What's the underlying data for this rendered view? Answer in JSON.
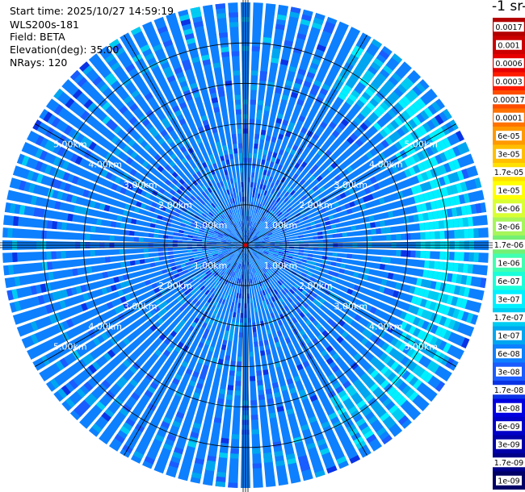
{
  "header": {
    "start_time": "Start time: 2025/10/27 14:59:19",
    "instrument": "WLS200s-181",
    "field": "Field: BETA",
    "elevation": "Elevation(deg): 35.00",
    "nrays": "NRays: 120"
  },
  "colorbar": {
    "title": "-1 sr-",
    "levels": [
      {
        "label": "0.0017",
        "color": "#b30000"
      },
      {
        "label": "0.001",
        "color": "#cc0000"
      },
      {
        "label": "0.0006",
        "color": "#e60000"
      },
      {
        "label": "0.0003",
        "color": "#ff1a00"
      },
      {
        "label": "0.00017",
        "color": "#ff4d00"
      },
      {
        "label": "0.0001",
        "color": "#ff7300"
      },
      {
        "label": "6e-05",
        "color": "#ff9900"
      },
      {
        "label": "3e-05",
        "color": "#ffbf00"
      },
      {
        "label": "1.7e-05",
        "color": "#ffe000"
      },
      {
        "label": "1e-05",
        "color": "#ffff00"
      },
      {
        "label": "6e-06",
        "color": "#d9ff33"
      },
      {
        "label": "3e-06",
        "color": "#a6f55a"
      },
      {
        "label": "1.7e-06",
        "color": "#73f073"
      },
      {
        "label": "1e-06",
        "color": "#40ffb0"
      },
      {
        "label": "6e-07",
        "color": "#1affd9"
      },
      {
        "label": "3e-07",
        "color": "#00f0ff"
      },
      {
        "label": "1.7e-07",
        "color": "#00ccf2"
      },
      {
        "label": "1e-07",
        "color": "#00a6f0"
      },
      {
        "label": "6e-08",
        "color": "#0d80ff"
      },
      {
        "label": "3e-08",
        "color": "#1a5cff"
      },
      {
        "label": "1.7e-08",
        "color": "#0a33e6"
      },
      {
        "label": "1e-08",
        "color": "#0000e0"
      },
      {
        "label": "6e-09",
        "color": "#0000c8"
      },
      {
        "label": "3e-09",
        "color": "#0000a8"
      },
      {
        "label": "1.7e-09",
        "color": "#00008a"
      },
      {
        "label": "1e-09",
        "color": "#000066"
      }
    ]
  },
  "chart_data": {
    "type": "heatmap",
    "projection": "polar (PPI)",
    "field": "BETA",
    "elevation_deg": 35.0,
    "n_rays": 120,
    "range_max_km": 6.0,
    "range_rings_km": [
      1,
      2,
      3,
      4,
      5
    ],
    "range_ring_labels": [
      "1.00km",
      "2.00km",
      "3.00km",
      "4.00km",
      "5.00km"
    ],
    "azimuth_spokes_deg": [
      0,
      30,
      60,
      90,
      120,
      150,
      180,
      210,
      240,
      270,
      300,
      330
    ],
    "dominant_level": "6e-08",
    "features": [
      {
        "description": "enhanced backscatter arc",
        "azimuth_deg_range": [
          30,
          150
        ],
        "range_km": [
          4.3,
          5.6
        ],
        "level": "3e-07"
      }
    ],
    "grid": true
  }
}
